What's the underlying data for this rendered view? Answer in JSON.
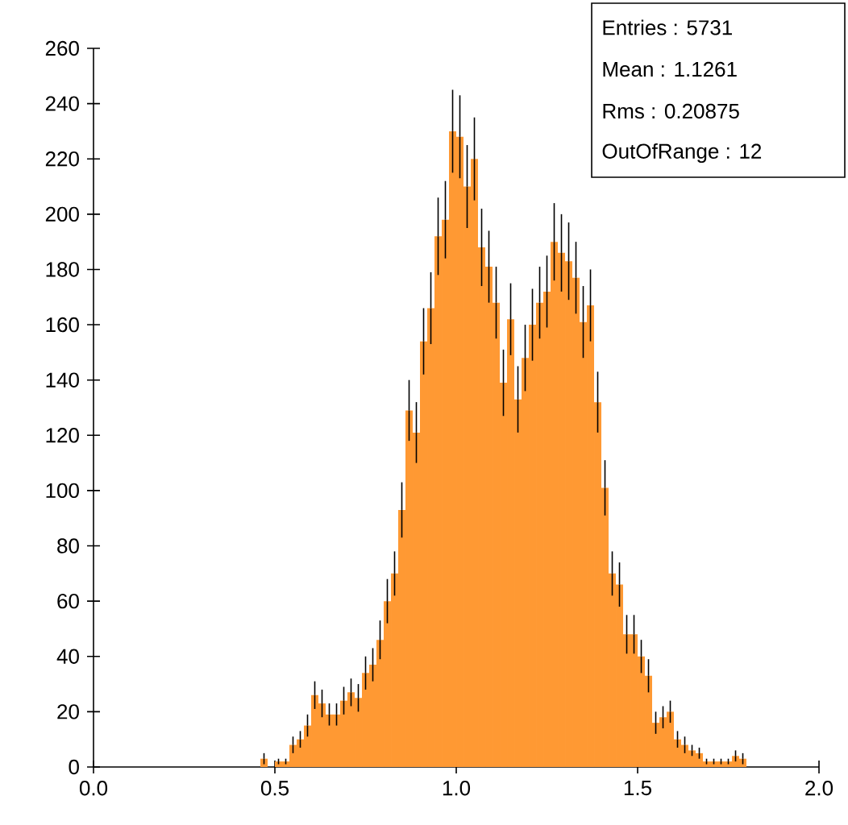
{
  "chart_data": {
    "type": "histogram",
    "bins": [
      0.44,
      0.46,
      0.48,
      0.5,
      0.52,
      0.54,
      0.56,
      0.58,
      0.6,
      0.62,
      0.64,
      0.66,
      0.68,
      0.7,
      0.72,
      0.74,
      0.76,
      0.78,
      0.8,
      0.82,
      0.84,
      0.86,
      0.88,
      0.9,
      0.92,
      0.94,
      0.96,
      0.98,
      1.0,
      1.02,
      1.04,
      1.06,
      1.08,
      1.1,
      1.12,
      1.14,
      1.16,
      1.18,
      1.2,
      1.22,
      1.24,
      1.26,
      1.28,
      1.3,
      1.32,
      1.34,
      1.36,
      1.38,
      1.4,
      1.42,
      1.44,
      1.46,
      1.48,
      1.5,
      1.52,
      1.54,
      1.56,
      1.58,
      1.6,
      1.62,
      1.64,
      1.66,
      1.68,
      1.7,
      1.72,
      1.74,
      1.76,
      1.78,
      1.8
    ],
    "values": [
      0,
      3,
      0,
      2,
      2,
      8,
      10,
      15,
      26,
      23,
      19,
      19,
      24,
      27,
      25,
      34,
      37,
      46,
      60,
      70,
      93,
      129,
      121,
      154,
      166,
      192,
      198,
      230,
      228,
      210,
      220,
      188,
      181,
      168,
      139,
      162,
      133,
      148,
      160,
      168,
      172,
      190,
      186,
      183,
      177,
      161,
      167,
      132,
      101,
      70,
      66,
      48,
      48,
      40,
      33,
      16,
      18,
      20,
      10,
      8,
      6,
      5,
      2,
      2,
      2,
      2,
      4,
      3
    ],
    "errors": [
      null,
      2,
      null,
      1,
      1,
      3,
      3,
      4,
      5,
      5,
      4,
      4,
      5,
      5,
      5,
      6,
      6,
      7,
      8,
      8,
      10,
      11,
      11,
      12,
      13,
      14,
      14,
      15,
      15,
      15,
      15,
      14,
      13,
      13,
      12,
      13,
      12,
      12,
      13,
      13,
      13,
      14,
      14,
      14,
      13,
      13,
      13,
      11,
      10,
      8,
      8,
      7,
      7,
      6,
      6,
      4,
      4,
      4,
      3,
      3,
      2,
      2,
      1,
      1,
      1,
      1,
      2,
      2
    ],
    "color": "#ff9933",
    "xlim": [
      0,
      2
    ],
    "ylim": [
      0,
      260
    ],
    "xticks": [
      {
        "value": 0,
        "label": "0.0"
      },
      {
        "value": 0.5,
        "label": "0.5"
      },
      {
        "value": 1,
        "label": "1.0"
      },
      {
        "value": 1.5,
        "label": "1.5"
      },
      {
        "value": 2,
        "label": "2.0"
      }
    ],
    "yticks": [
      0,
      20,
      40,
      60,
      80,
      100,
      120,
      140,
      160,
      180,
      200,
      220,
      240,
      260
    ],
    "annotations": [
      "Entries :     5731",
      "Mean :    1.1261",
      "Rms :   0.20875",
      "OutOfRange : 12"
    ]
  }
}
